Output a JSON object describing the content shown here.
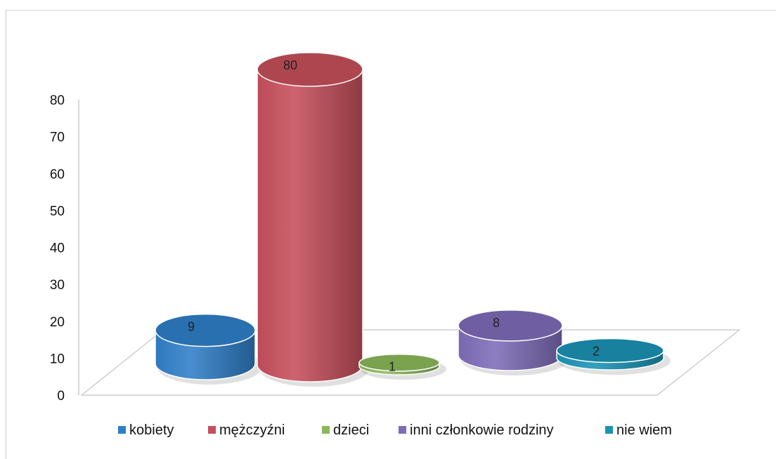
{
  "chart_data": {
    "type": "bar",
    "style": "3d-cylinder",
    "categories": [
      "kobiety",
      "mężczyźni",
      "dzieci",
      "inni członkowie rodziny",
      "nie wiem"
    ],
    "values": [
      9,
      80,
      1,
      8,
      2
    ],
    "data_labels": [
      "9",
      "80",
      "1",
      "8",
      "2"
    ],
    "colors": [
      "#2f7fc8",
      "#c64f5b",
      "#8bb85a",
      "#7e6cb8",
      "#1a93b5"
    ],
    "ylim": [
      0,
      80
    ],
    "yticks": [
      "0",
      "10",
      "20",
      "30",
      "40",
      "50",
      "60",
      "70",
      "80"
    ],
    "legend": {
      "placement": "bottom",
      "entries": [
        "kobiety",
        "mężczyźni",
        "dzieci",
        "inni członkowie rodziny",
        "nie wiem"
      ]
    },
    "grid": false
  }
}
